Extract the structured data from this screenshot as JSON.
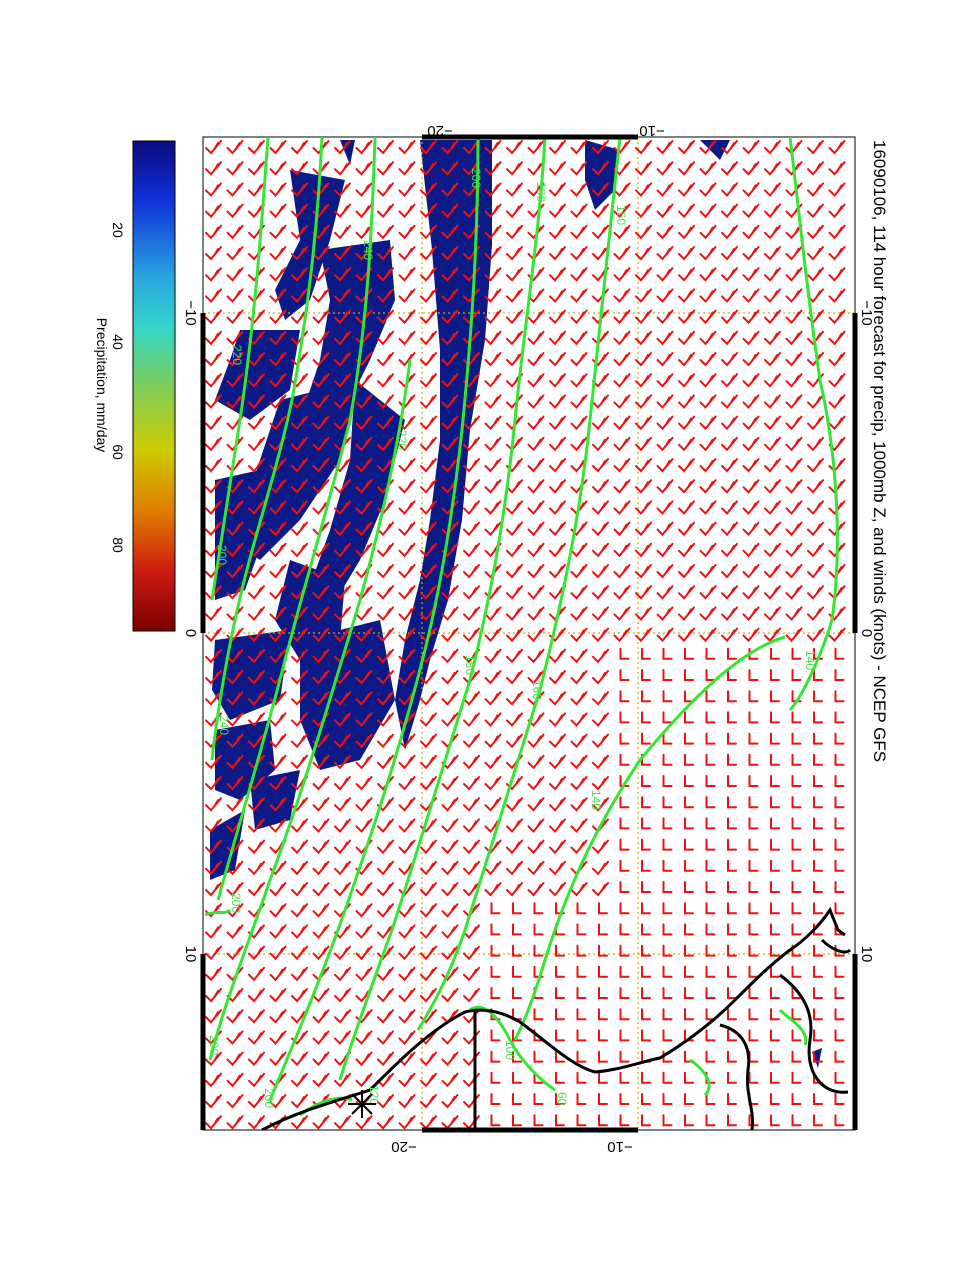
{
  "title": "16090106, 114 hour forecast for precip, 1000mb Z, and winds (knots) - NCEP GFS",
  "colorbar": {
    "label": "Precipitation, mm/day",
    "ticks": [
      "20",
      "40",
      "60",
      "80"
    ],
    "colors": [
      "#0b0b80",
      "#1030d8",
      "#2aa6e0",
      "#33d6c8",
      "#7ccd59",
      "#cccc00",
      "#e07a00",
      "#cc1a10",
      "#7a0000"
    ]
  },
  "axes": {
    "top_ticks": [
      "−20",
      "−10"
    ],
    "bottom_ticks": [
      "−20",
      "−10"
    ],
    "left_ticks": [
      "−10",
      "0",
      "10"
    ],
    "right_ticks": [
      "−10",
      "0",
      "10"
    ]
  },
  "contour_labels": [
    "200",
    "180",
    "160",
    "240",
    "220",
    "200",
    "220",
    "240",
    "200",
    "180",
    "160",
    "140",
    "140",
    "200",
    "200",
    "120",
    "100",
    "60"
  ],
  "colors": {
    "contour": "#33e633",
    "wind": "#ee1111",
    "precip": "#0b1a86",
    "coast": "#000000",
    "grid": "#d4aa00"
  }
}
